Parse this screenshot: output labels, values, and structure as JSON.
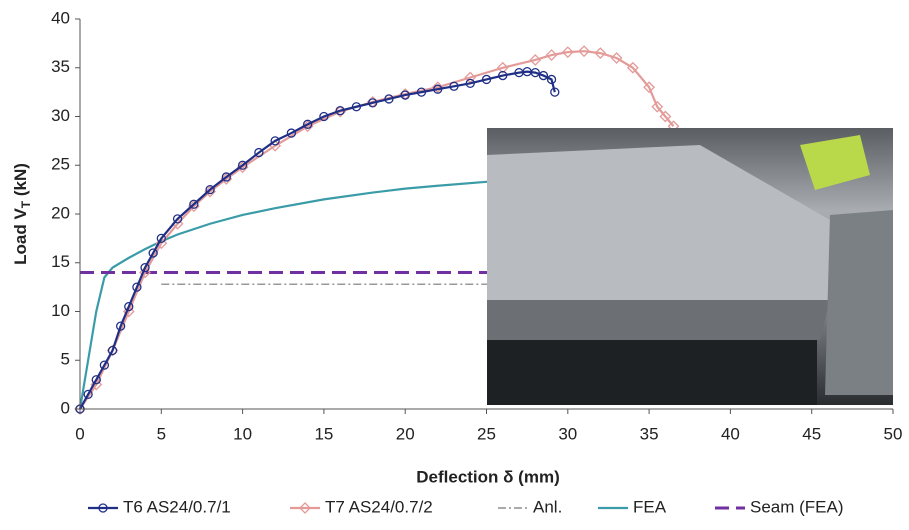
{
  "chart_data": {
    "type": "line",
    "x_label": "Deflection δ (mm)",
    "y_label": [
      "Load V",
      "T",
      " (kN)"
    ],
    "xlim": [
      0,
      50
    ],
    "xticks": [
      0,
      5,
      10,
      15,
      20,
      25,
      30,
      35,
      40,
      45,
      50
    ],
    "ylim": [
      0,
      40
    ],
    "yticks": [
      0,
      5,
      10,
      15,
      20,
      25,
      30,
      35,
      40
    ],
    "grid": false,
    "legend": "bottom",
    "series": [
      {
        "name": "T6 AS24/0.7/1",
        "color": "#1f2f86",
        "marker": "circle",
        "dash": "solid",
        "x": [
          0,
          0.5,
          1,
          1.5,
          2,
          2.5,
          3,
          3.5,
          4,
          4.5,
          5,
          6,
          7,
          8,
          9,
          10,
          11,
          12,
          13,
          14,
          15,
          16,
          17,
          18,
          19,
          20,
          21,
          22,
          23,
          24,
          25,
          26,
          27,
          27.5,
          28,
          28.5,
          29,
          29.2
        ],
        "values": [
          0,
          1.5,
          3,
          4.5,
          6,
          8.5,
          10.5,
          12.5,
          14.5,
          16,
          17.5,
          19.5,
          21,
          22.5,
          23.8,
          25,
          26.3,
          27.5,
          28.3,
          29.2,
          30,
          30.6,
          31,
          31.4,
          31.8,
          32.2,
          32.5,
          32.8,
          33.1,
          33.4,
          33.8,
          34.2,
          34.5,
          34.6,
          34.5,
          34.2,
          33.8,
          32.5
        ]
      },
      {
        "name": "T7 AS24/0.7/2",
        "color": "#e39a98",
        "marker": "diamond",
        "dash": "solid",
        "x": [
          0,
          1,
          2,
          3,
          4,
          5,
          6,
          7,
          8,
          9,
          10,
          12,
          14,
          16,
          18,
          20,
          22,
          24,
          26,
          28,
          29,
          30,
          31,
          32,
          33,
          34,
          35,
          35.5,
          36,
          36.5
        ],
        "values": [
          0,
          2.5,
          6,
          10,
          14,
          17,
          19,
          20.8,
          22.3,
          23.6,
          24.8,
          27,
          29,
          30.5,
          31.5,
          32.3,
          33,
          34,
          35,
          35.8,
          36.3,
          36.6,
          36.7,
          36.5,
          36,
          35,
          33,
          31,
          30,
          29
        ]
      },
      {
        "name": "Anl.",
        "color": "#777777",
        "marker": null,
        "dash": "dashdot",
        "x": [
          5,
          50
        ],
        "values": [
          12.8,
          12.8
        ]
      },
      {
        "name": "FEA",
        "color": "#3a9ca8",
        "marker": null,
        "dash": "solid",
        "x": [
          0,
          0.5,
          1,
          1.5,
          2,
          3,
          4,
          5,
          6,
          8,
          10,
          12,
          15,
          18,
          20,
          22,
          25,
          30,
          35,
          40
        ],
        "values": [
          0,
          5,
          10,
          13.5,
          14.5,
          15.5,
          16.4,
          17.2,
          17.9,
          19,
          19.9,
          20.6,
          21.5,
          22.2,
          22.6,
          22.9,
          23.3,
          23.8,
          24.2,
          24.5
        ]
      },
      {
        "name": "Seam (FEA)",
        "color": "#7030a0",
        "marker": null,
        "dash": "dashed",
        "x": [
          0,
          50
        ],
        "values": [
          14,
          14
        ]
      }
    ]
  }
}
